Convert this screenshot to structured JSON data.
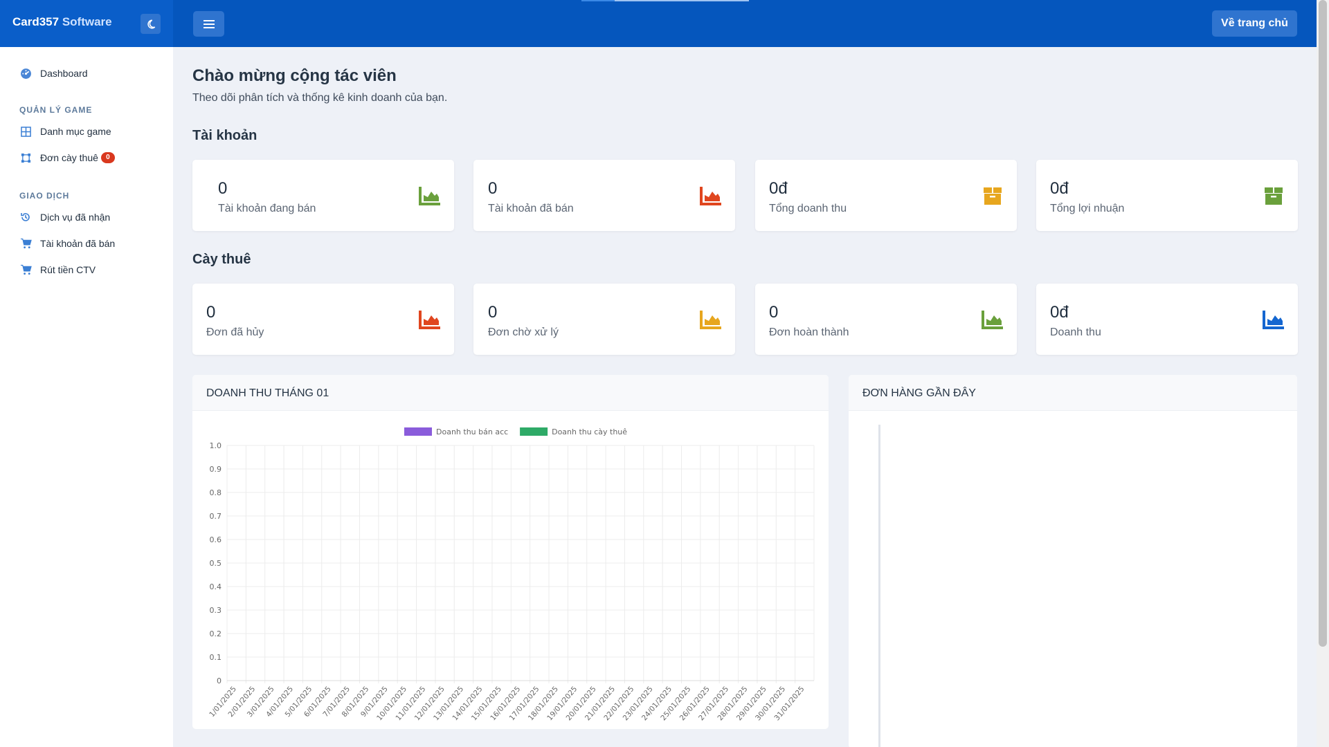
{
  "brand": {
    "name": "Card357",
    "suffix": " Software"
  },
  "topbar": {
    "home_button": "Về trang chủ"
  },
  "sidebar": {
    "dashboard": "Dashboard",
    "section_game": "QUẢN LÝ GAME",
    "game_category": "Danh mục game",
    "boost_orders": "Đơn cày thuê",
    "boost_orders_badge": "0",
    "section_transaction": "GIAO DỊCH",
    "received_services": "Dịch vụ đã nhận",
    "sold_accounts": "Tài khoản đã bán",
    "withdraw": "Rút tiền CTV"
  },
  "main": {
    "title": "Chào mừng cộng tác viên",
    "subtitle": "Theo dõi phân tích và thống kê kinh doanh của bạn.",
    "accounts_section": "Tài khoản",
    "accounts_cards": [
      {
        "value": "0",
        "label": "Tài khoản đang bán",
        "icon": "chart-area-icon",
        "color": "#6aa03c"
      },
      {
        "value": "0",
        "label": "Tài khoản đã bán",
        "icon": "chart-area-icon",
        "color": "#e0461f"
      },
      {
        "value": "0đ",
        "label": "Tổng doanh thu",
        "icon": "box-icon",
        "color": "#e7a61e"
      },
      {
        "value": "0đ",
        "label": "Tổng lợi nhuận",
        "icon": "box-icon",
        "color": "#6aa03c"
      }
    ],
    "boost_section": "Cày thuê",
    "boost_cards": [
      {
        "value": "0",
        "label": "Đơn đã hủy",
        "icon": "chart-area-icon",
        "color": "#e0461f"
      },
      {
        "value": "0",
        "label": "Đơn chờ xử lý",
        "icon": "chart-area-icon",
        "color": "#e7a61e"
      },
      {
        "value": "0",
        "label": "Đơn hoàn thành",
        "icon": "chart-area-icon",
        "color": "#6aa03c"
      },
      {
        "value": "0đ",
        "label": "Doanh thu",
        "icon": "chart-area-icon",
        "color": "#1466d0"
      }
    ],
    "revenue_panel_title": "DOANH THU THÁNG 01",
    "recent_orders_title": "ĐƠN HÀNG GẦN ĐÂY"
  },
  "chart_data": {
    "type": "bar",
    "title": "",
    "xlabel": "",
    "ylabel": "",
    "ylim": [
      0,
      1
    ],
    "yticks": [
      "0",
      "0.1",
      "0.2",
      "0.3",
      "0.4",
      "0.5",
      "0.6",
      "0.7",
      "0.8",
      "0.9",
      "1.0"
    ],
    "categories": [
      "1/01/2025",
      "2/01/2025",
      "3/01/2025",
      "4/01/2025",
      "5/01/2025",
      "6/01/2025",
      "7/01/2025",
      "8/01/2025",
      "9/01/2025",
      "10/01/2025",
      "11/01/2025",
      "12/01/2025",
      "13/01/2025",
      "14/01/2025",
      "15/01/2025",
      "16/01/2025",
      "17/01/2025",
      "18/01/2025",
      "19/01/2025",
      "20/01/2025",
      "21/01/2025",
      "22/01/2025",
      "23/01/2025",
      "24/01/2025",
      "25/01/2025",
      "26/01/2025",
      "27/01/2025",
      "28/01/2025",
      "29/01/2025",
      "30/01/2025",
      "31/01/2025"
    ],
    "series": [
      {
        "name": "Doanh thu bán acc",
        "color": "#8a5cdb",
        "values": [
          0,
          0,
          0,
          0,
          0,
          0,
          0,
          0,
          0,
          0,
          0,
          0,
          0,
          0,
          0,
          0,
          0,
          0,
          0,
          0,
          0,
          0,
          0,
          0,
          0,
          0,
          0,
          0,
          0,
          0,
          0
        ]
      },
      {
        "name": "Doanh thu cày thuê",
        "color": "#2eaa67",
        "values": [
          0,
          0,
          0,
          0,
          0,
          0,
          0,
          0,
          0,
          0,
          0,
          0,
          0,
          0,
          0,
          0,
          0,
          0,
          0,
          0,
          0,
          0,
          0,
          0,
          0,
          0,
          0,
          0,
          0,
          0,
          0
        ]
      }
    ],
    "grid": true,
    "legend": "top-center"
  }
}
